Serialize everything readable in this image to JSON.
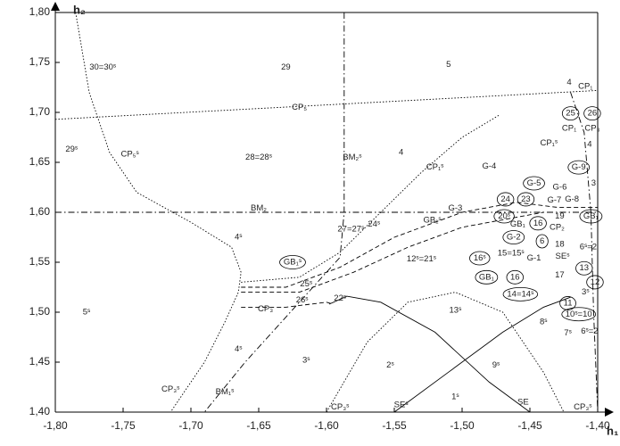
{
  "chart_data": {
    "type": "line",
    "xlabel": "h₁",
    "ylabel": "h₂",
    "xlim": [
      -1.8,
      -1.4
    ],
    "ylim": [
      1.4,
      1.8
    ],
    "xticks": [
      {
        "value": -1.8,
        "label": "-1,80"
      },
      {
        "value": -1.75,
        "label": "-1,75"
      },
      {
        "value": -1.7,
        "label": "-1,70"
      },
      {
        "value": -1.65,
        "label": "-1,65"
      },
      {
        "value": -1.6,
        "label": "-1,60"
      },
      {
        "value": -1.55,
        "label": "-1,55"
      },
      {
        "value": -1.5,
        "label": "-1,50"
      },
      {
        "value": -1.45,
        "label": "-1,45"
      },
      {
        "value": -1.4,
        "label": "-1,40"
      }
    ],
    "yticks": [
      {
        "value": 1.4,
        "label": "1,40"
      },
      {
        "value": 1.45,
        "label": "1,45"
      },
      {
        "value": 1.5,
        "label": "1,50"
      },
      {
        "value": 1.55,
        "label": "1,55"
      },
      {
        "value": 1.6,
        "label": "1,60"
      },
      {
        "value": 1.65,
        "label": "1,65"
      },
      {
        "value": 1.7,
        "label": "1,70"
      },
      {
        "value": 1.75,
        "label": "1,75"
      },
      {
        "value": 1.8,
        "label": "1,80"
      }
    ],
    "series": [
      {
        "dash": "dotted",
        "x": [
          -1.8,
          -1.4
        ],
        "values": [
          1.693,
          1.722
        ]
      },
      {
        "dash": "dashdot",
        "x": [
          -1.8,
          -1.4
        ],
        "values": [
          1.6,
          1.6
        ]
      },
      {
        "dash": "dashdot",
        "x": [
          -1.587,
          -1.587,
          -1.59,
          -1.62,
          -1.66,
          -1.69
        ],
        "values": [
          1.8,
          1.6,
          1.555,
          1.51,
          1.45,
          1.4
        ]
      },
      {
        "dash": "dotted",
        "x": [
          -1.785,
          -1.775,
          -1.76,
          -1.74,
          -1.7,
          -1.67,
          -1.663,
          -1.665,
          -1.675,
          -1.69,
          -1.715
        ],
        "values": [
          1.8,
          1.72,
          1.66,
          1.62,
          1.59,
          1.565,
          1.54,
          1.52,
          1.49,
          1.45,
          1.4
        ]
      },
      {
        "dash": "dotted",
        "x": [
          -1.663,
          -1.62,
          -1.59,
          -1.56,
          -1.53,
          -1.5,
          -1.473
        ],
        "values": [
          1.53,
          1.535,
          1.56,
          1.6,
          1.64,
          1.675,
          1.697
        ]
      },
      {
        "dash": "dashed",
        "x": [
          -1.663,
          -1.63,
          -1.59,
          -1.55,
          -1.5,
          -1.46,
          -1.43,
          -1.4
        ],
        "values": [
          1.525,
          1.525,
          1.545,
          1.575,
          1.6,
          1.61,
          1.605,
          1.605
        ]
      },
      {
        "dash": "dashed",
        "x": [
          -1.663,
          -1.62,
          -1.58,
          -1.54,
          -1.5,
          -1.46,
          -1.44
        ],
        "values": [
          1.52,
          1.52,
          1.54,
          1.565,
          1.585,
          1.595,
          1.6
        ]
      },
      {
        "dash": "solid",
        "x": [
          -1.598,
          -1.585,
          -1.56,
          -1.52,
          -1.48,
          -1.45
        ],
        "values": [
          1.508,
          1.516,
          1.51,
          1.48,
          1.43,
          1.4
        ]
      },
      {
        "dash": "solid",
        "x": [
          -1.55,
          -1.51,
          -1.47,
          -1.44,
          -1.42
        ],
        "values": [
          1.4,
          1.44,
          1.48,
          1.505,
          1.515
        ]
      },
      {
        "dash": "dotted",
        "x": [
          -1.6,
          -1.57,
          -1.54,
          -1.505,
          -1.47,
          -1.44,
          -1.425
        ],
        "values": [
          1.4,
          1.47,
          1.51,
          1.52,
          1.5,
          1.44,
          1.4
        ]
      },
      {
        "dash": "dashed",
        "x": [
          -1.663,
          -1.63,
          -1.6,
          -1.595
        ],
        "values": [
          1.505,
          1.505,
          1.51,
          1.508
        ]
      },
      {
        "dash": "dashdot",
        "x": [
          -1.42,
          -1.41,
          -1.405,
          -1.403,
          -1.4
        ],
        "values": [
          1.72,
          1.68,
          1.6,
          1.5,
          1.4
        ]
      }
    ],
    "annotations": [
      {
        "text": "30=30ˢ",
        "x": -1.765,
        "y": 1.745
      },
      {
        "text": "29",
        "x": -1.63,
        "y": 1.745
      },
      {
        "text": "5",
        "x": -1.51,
        "y": 1.748
      },
      {
        "text": "CP₅",
        "x": -1.62,
        "y": 1.705
      },
      {
        "text": "29ˢ",
        "x": -1.788,
        "y": 1.663
      },
      {
        "text": "CP₅ˢ",
        "x": -1.745,
        "y": 1.658
      },
      {
        "text": "28=28ˢ",
        "x": -1.65,
        "y": 1.655
      },
      {
        "text": "BM₂ˢ",
        "x": -1.581,
        "y": 1.655
      },
      {
        "text": "4",
        "x": -1.545,
        "y": 1.66
      },
      {
        "text": "CP₁ˢ",
        "x": -1.52,
        "y": 1.645
      },
      {
        "text": "G-4",
        "x": -1.48,
        "y": 1.646
      },
      {
        "text": "G-3",
        "x": -1.505,
        "y": 1.604
      },
      {
        "text": "BM₂",
        "x": -1.65,
        "y": 1.604
      },
      {
        "text": "4ˢ",
        "x": -1.665,
        "y": 1.575
      },
      {
        "text": "24ˢ",
        "x": -1.565,
        "y": 1.588
      },
      {
        "text": "GB₁ˢ",
        "x": -1.522,
        "y": 1.592
      },
      {
        "text": "27=27ˢ",
        "x": -1.582,
        "y": 1.583
      },
      {
        "text": "12ˢ=21ˢ",
        "x": -1.53,
        "y": 1.553
      },
      {
        "text": "GB₁ˢ",
        "x": -1.625,
        "y": 1.55,
        "circled": true
      },
      {
        "text": "25ˢ",
        "x": -1.615,
        "y": 1.528
      },
      {
        "text": "26ˢ",
        "x": -1.618,
        "y": 1.512
      },
      {
        "text": "22ˢ",
        "x": -1.59,
        "y": 1.514
      },
      {
        "text": "CP₃",
        "x": -1.645,
        "y": 1.503
      },
      {
        "text": "5ˢ",
        "x": -1.777,
        "y": 1.5
      },
      {
        "text": "13ˢ",
        "x": -1.505,
        "y": 1.502
      },
      {
        "text": "4ˢ",
        "x": -1.665,
        "y": 1.463
      },
      {
        "text": "3ˢ",
        "x": -1.615,
        "y": 1.452
      },
      {
        "text": "2ˢ",
        "x": -1.553,
        "y": 1.447
      },
      {
        "text": "9ˢ",
        "x": -1.475,
        "y": 1.447
      },
      {
        "text": "8ˢ",
        "x": -1.44,
        "y": 1.49
      },
      {
        "text": "1ˢ",
        "x": -1.505,
        "y": 1.415
      },
      {
        "text": "CP₃ˢ",
        "x": -1.715,
        "y": 1.423
      },
      {
        "text": "BM₁ˢ",
        "x": -1.675,
        "y": 1.42
      },
      {
        "text": "CP₃ˢ",
        "x": -1.59,
        "y": 1.405
      },
      {
        "text": "SEˢ",
        "x": -1.545,
        "y": 1.407
      },
      {
        "text": "SE",
        "x": -1.455,
        "y": 1.41
      },
      {
        "text": "CP₃ˢ",
        "x": -1.411,
        "y": 1.405
      },
      {
        "text": "4",
        "x": -1.421,
        "y": 1.73
      },
      {
        "text": "CP₁",
        "x": -1.409,
        "y": 1.726
      },
      {
        "text": "25",
        "x": -1.42,
        "y": 1.699,
        "circled": true
      },
      {
        "text": "26",
        "x": -1.404,
        "y": 1.699,
        "circled": true
      },
      {
        "text": "CP₁",
        "x": -1.421,
        "y": 1.684
      },
      {
        "text": "CP₃",
        "x": -1.404,
        "y": 1.684
      },
      {
        "text": "CP₁ˢ",
        "x": -1.436,
        "y": 1.669
      },
      {
        "text": "4",
        "x": -1.406,
        "y": 1.668
      },
      {
        "text": "G-9",
        "x": -1.414,
        "y": 1.645,
        "circled": true
      },
      {
        "text": "3",
        "x": -1.403,
        "y": 1.629
      },
      {
        "text": "G-5",
        "x": -1.447,
        "y": 1.629,
        "circled": true
      },
      {
        "text": "G-6",
        "x": -1.428,
        "y": 1.625
      },
      {
        "text": "G-7",
        "x": -1.432,
        "y": 1.612
      },
      {
        "text": "G-8",
        "x": -1.419,
        "y": 1.613
      },
      {
        "text": "24",
        "x": -1.468,
        "y": 1.613,
        "circled": true
      },
      {
        "text": "23",
        "x": -1.453,
        "y": 1.613,
        "circled": true
      },
      {
        "text": "20ˢ",
        "x": -1.469,
        "y": 1.596,
        "circled": true
      },
      {
        "text": "19",
        "x": -1.428,
        "y": 1.596
      },
      {
        "text": "GB₁",
        "x": -1.405,
        "y": 1.596,
        "circled": true
      },
      {
        "text": "16",
        "x": -1.444,
        "y": 1.589,
        "circled": true
      },
      {
        "text": "CP₂",
        "x": -1.43,
        "y": 1.585
      },
      {
        "text": "GB₁",
        "x": -1.459,
        "y": 1.588
      },
      {
        "text": "G-2",
        "x": -1.462,
        "y": 1.575,
        "circled": true
      },
      {
        "text": "6",
        "x": -1.441,
        "y": 1.571,
        "circled": true
      },
      {
        "text": "18",
        "x": -1.428,
        "y": 1.568
      },
      {
        "text": "6ˢ=2",
        "x": -1.407,
        "y": 1.565
      },
      {
        "text": "15=15ˢ",
        "x": -1.464,
        "y": 1.559
      },
      {
        "text": "16ˢ",
        "x": -1.487,
        "y": 1.554,
        "circled": true
      },
      {
        "text": "G-1",
        "x": -1.447,
        "y": 1.554
      },
      {
        "text": "SEˢ",
        "x": -1.426,
        "y": 1.556
      },
      {
        "text": "16",
        "x": -1.461,
        "y": 1.535,
        "circled": true
      },
      {
        "text": "GB₁",
        "x": -1.482,
        "y": 1.535,
        "circled": true
      },
      {
        "text": "17",
        "x": -1.428,
        "y": 1.537
      },
      {
        "text": "13",
        "x": -1.41,
        "y": 1.544,
        "circled": true
      },
      {
        "text": "12",
        "x": -1.402,
        "y": 1.53,
        "circled": true
      },
      {
        "text": "14=14ˢ",
        "x": -1.457,
        "y": 1.518,
        "circled": true
      },
      {
        "text": "3ˢ",
        "x": -1.409,
        "y": 1.52
      },
      {
        "text": "11",
        "x": -1.422,
        "y": 1.509,
        "circled": true
      },
      {
        "text": "10ˢ=10",
        "x": -1.414,
        "y": 1.498,
        "circled": true
      },
      {
        "text": "7ˢ",
        "x": -1.422,
        "y": 1.479
      },
      {
        "text": "6ˢ=2",
        "x": -1.406,
        "y": 1.481
      }
    ]
  }
}
